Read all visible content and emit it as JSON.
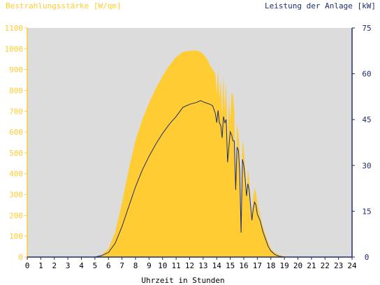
{
  "chart_data": {
    "type": "area",
    "xlabel": "Uhrzeit in Stunden",
    "ylabel_left": "Bestrahlungsstärke [W/qm]",
    "ylabel_right": "Leistung der Anlage [kW]",
    "xlim": [
      0,
      24
    ],
    "ylim_left": [
      0,
      1100
    ],
    "ylim_right": [
      0,
      75
    ],
    "x_ticks": [
      0,
      1,
      2,
      3,
      4,
      5,
      6,
      7,
      8,
      9,
      10,
      11,
      12,
      13,
      14,
      15,
      16,
      17,
      18,
      19,
      20,
      21,
      22,
      23,
      24
    ],
    "y_ticks_left": [
      0,
      100,
      200,
      300,
      400,
      500,
      600,
      700,
      800,
      900,
      1000,
      1100
    ],
    "y_ticks_right": [
      0,
      15,
      30,
      45,
      60,
      75
    ],
    "plot_background": "#dcdcdc",
    "series": [
      {
        "name": "Bestrahlungsstärke [W/qm]",
        "axis": "left",
        "kind": "area",
        "color": "#ffcc33",
        "x": [
          0,
          5.0,
          5.5,
          6.0,
          6.5,
          7.0,
          7.5,
          8.0,
          8.5,
          9.0,
          9.5,
          10.0,
          10.5,
          11.0,
          11.5,
          12.0,
          12.5,
          12.8,
          13.0,
          13.3,
          13.5,
          13.7,
          13.9,
          14.0,
          14.1,
          14.2,
          14.3,
          14.4,
          14.5,
          14.6,
          14.7,
          14.8,
          14.9,
          15.0,
          15.1,
          15.2,
          15.3,
          15.4,
          15.5,
          15.6,
          15.7,
          15.8,
          15.9,
          16.0,
          16.1,
          16.2,
          16.3,
          16.4,
          16.5,
          16.6,
          16.7,
          16.8,
          16.9,
          17.0,
          17.2,
          17.4,
          17.6,
          17.8,
          18.0,
          18.3,
          18.6,
          19.0,
          19.5,
          20.0,
          24
        ],
        "values": [
          0,
          0,
          10,
          40,
          120,
          260,
          420,
          560,
          660,
          740,
          810,
          870,
          920,
          960,
          985,
          990,
          992,
          985,
          975,
          950,
          920,
          900,
          880,
          780,
          900,
          760,
          850,
          680,
          870,
          700,
          840,
          540,
          760,
          650,
          790,
          780,
          700,
          320,
          640,
          600,
          500,
          130,
          560,
          520,
          430,
          300,
          420,
          380,
          260,
          200,
          290,
          330,
          310,
          260,
          200,
          150,
          110,
          70,
          40,
          20,
          10,
          4,
          0,
          0,
          0
        ]
      },
      {
        "name": "Leistung der Anlage [kW]",
        "axis": "right",
        "kind": "line",
        "color": "#1f2d6b",
        "x": [
          0,
          5.0,
          5.5,
          6.0,
          6.5,
          7.0,
          7.5,
          8.0,
          8.5,
          9.0,
          9.5,
          10.0,
          10.5,
          11.0,
          11.5,
          12.0,
          12.5,
          12.8,
          13.0,
          13.3,
          13.5,
          13.7,
          13.9,
          14.0,
          14.1,
          14.2,
          14.3,
          14.4,
          14.5,
          14.6,
          14.7,
          14.8,
          14.9,
          15.0,
          15.1,
          15.2,
          15.3,
          15.4,
          15.5,
          15.6,
          15.7,
          15.8,
          15.9,
          16.0,
          16.1,
          16.2,
          16.3,
          16.4,
          16.5,
          16.6,
          16.7,
          16.8,
          16.9,
          17.0,
          17.2,
          17.4,
          17.6,
          17.8,
          18.0,
          18.3,
          18.6,
          19.0,
          19.5,
          20.0,
          24
        ],
        "values": [
          0,
          0,
          0.5,
          1.5,
          4.5,
          10,
          16.5,
          23,
          28.5,
          33,
          37,
          40.5,
          43.5,
          46,
          49,
          50,
          50.6,
          51.2,
          50.8,
          50.3,
          50,
          49.5,
          47,
          44,
          48,
          44,
          43,
          39,
          46,
          44,
          45,
          31,
          36,
          41,
          40,
          38,
          38,
          22,
          36,
          35,
          28,
          8,
          32,
          30,
          26,
          20,
          24,
          22,
          17,
          12,
          16,
          18,
          17,
          14,
          12,
          8.5,
          6,
          3.5,
          2,
          0.8,
          0.3,
          0,
          0,
          0,
          0
        ]
      }
    ]
  }
}
